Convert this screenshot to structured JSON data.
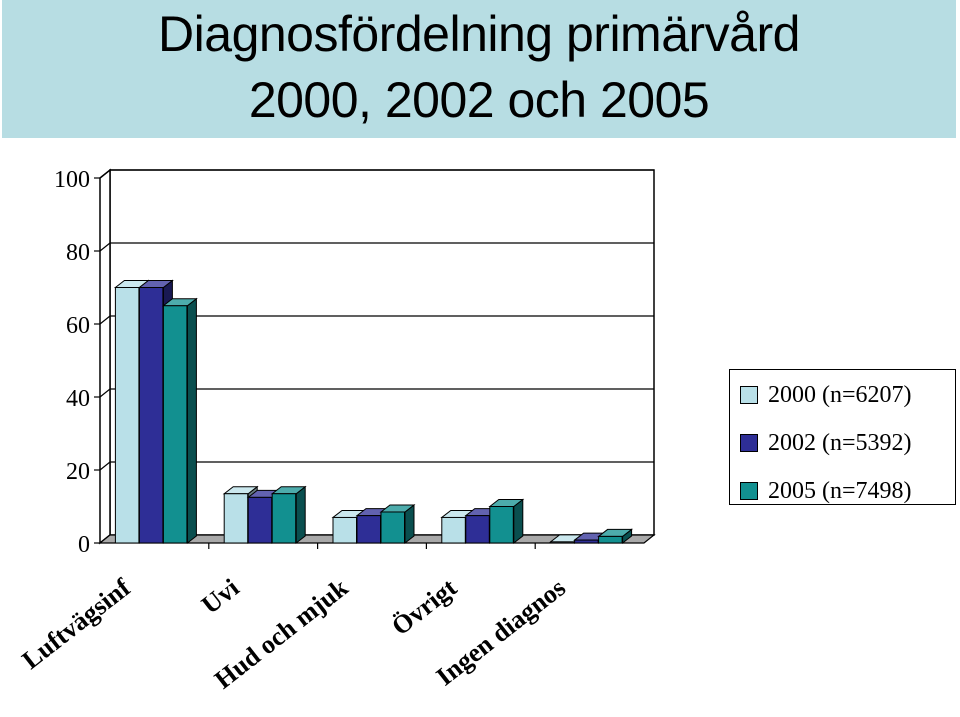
{
  "title": {
    "line1": "Diagnosfördelning primärvård",
    "line2": "2000, 2002 och 2005"
  },
  "colors": {
    "title_band": "#b7dde3",
    "series": [
      "#b9e0e8",
      "#2e2e96",
      "#129090"
    ]
  },
  "chart_data": {
    "type": "bar",
    "three_d": true,
    "categories": [
      "Luftvägsinf",
      "Uvi",
      "Hud och mjuk",
      "Övrigt",
      "Ingen diagnos"
    ],
    "series": [
      {
        "name": "2000 (n=6207)",
        "values": [
          70,
          13.5,
          7,
          7,
          0.3
        ]
      },
      {
        "name": "2002 (n=5392)",
        "values": [
          70,
          12.5,
          7.5,
          7.5,
          0.8
        ]
      },
      {
        "name": "2005 (n=7498)",
        "values": [
          65,
          13.5,
          8.5,
          10,
          1.8
        ]
      }
    ],
    "y_ticks": [
      0,
      20,
      40,
      60,
      80,
      100
    ],
    "ylim": [
      0,
      100
    ],
    "grid": true,
    "legend_position": "right",
    "xlabel": "",
    "ylabel": ""
  }
}
